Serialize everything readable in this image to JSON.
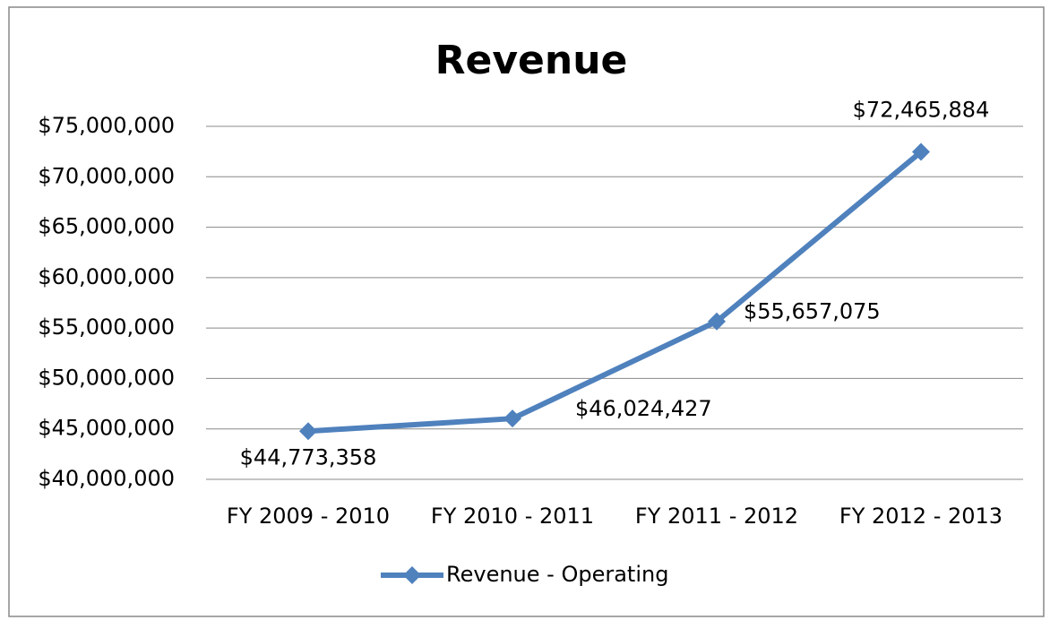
{
  "chart_data": {
    "type": "line",
    "title": "Revenue",
    "categories": [
      "FY 2009 - 2010",
      "FY 2010 - 2011",
      "FY 2011 - 2012",
      "FY 2012 - 2013"
    ],
    "series": [
      {
        "name": "Revenue - Operating",
        "color": "#4f81bd",
        "values": [
          44773358,
          46024427,
          55657075,
          72465884
        ],
        "value_labels": [
          "$44,773,358",
          "$46,024,427",
          "$55,657,075",
          "$72,465,884"
        ]
      }
    ],
    "ylim": [
      40000000,
      75000000
    ],
    "yticks": [
      {
        "value": 40000000,
        "label": "$40,000,000"
      },
      {
        "value": 45000000,
        "label": "$45,000,000"
      },
      {
        "value": 50000000,
        "label": "$50,000,000"
      },
      {
        "value": 55000000,
        "label": "$55,000,000"
      },
      {
        "value": 60000000,
        "label": "$60,000,000"
      },
      {
        "value": 65000000,
        "label": "$65,000,000"
      },
      {
        "value": 70000000,
        "label": "$70,000,000"
      },
      {
        "value": 75000000,
        "label": "$75,000,000"
      }
    ],
    "grid": true,
    "legend": "bottom"
  }
}
